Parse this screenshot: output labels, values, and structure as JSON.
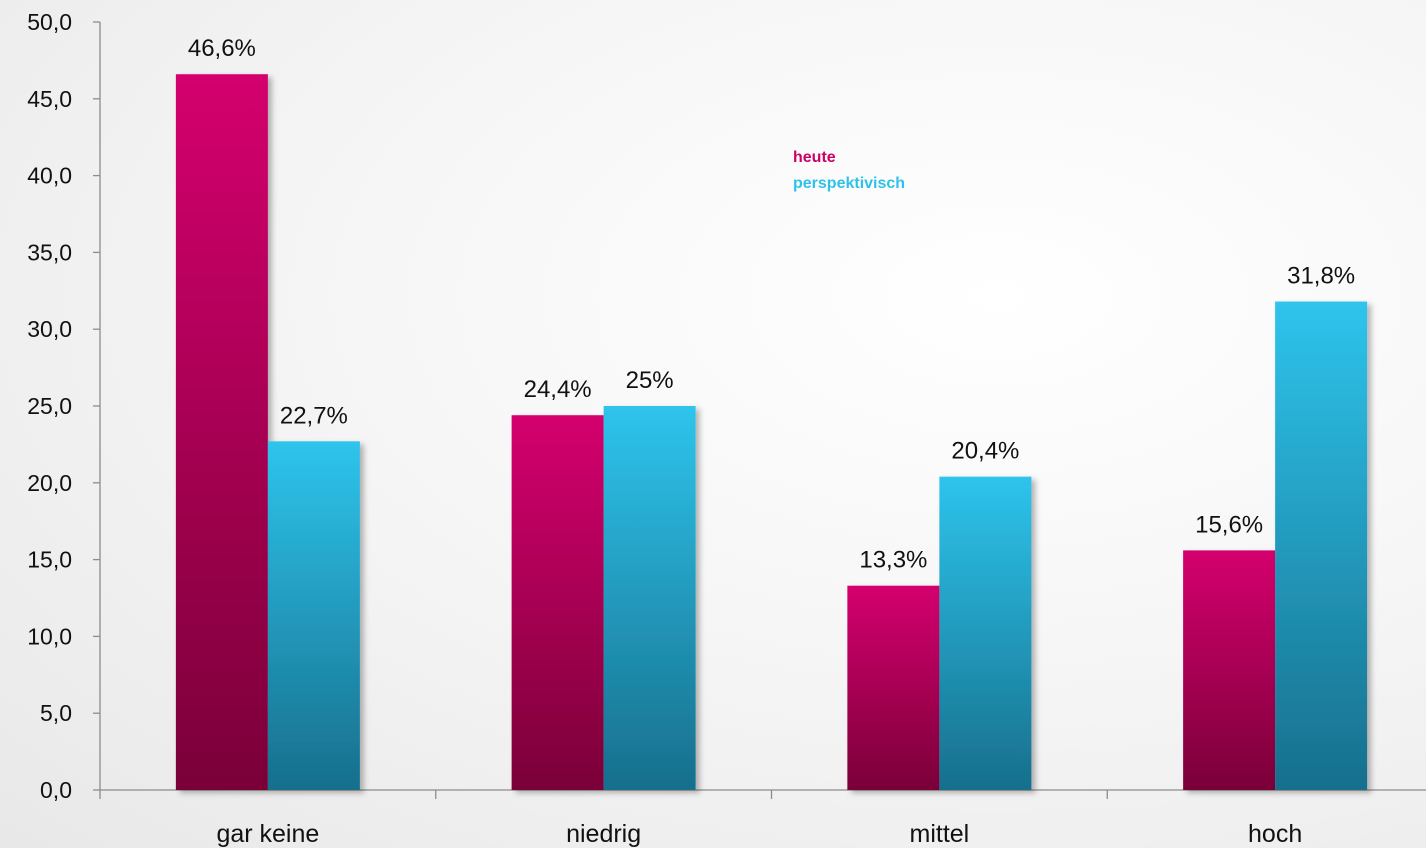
{
  "chart_data": {
    "type": "bar",
    "categories": [
      "gar keine",
      "niedrig",
      "mittel",
      "hoch"
    ],
    "series": [
      {
        "name": "heute",
        "values": [
          46.6,
          24.4,
          13.3,
          15.6
        ],
        "labels": [
          "46,6%",
          "24,4%",
          "13,3%",
          "15,6%"
        ],
        "color": "#cc0066"
      },
      {
        "name": "perspektivisch",
        "values": [
          22.7,
          25.0,
          20.4,
          31.8
        ],
        "labels": [
          "22,7%",
          "25%",
          "20,4%",
          "31,8%"
        ],
        "color": "#2ec2ea"
      }
    ],
    "ylim": [
      0,
      50
    ],
    "yticks": [
      0,
      5,
      10,
      15,
      20,
      25,
      30,
      35,
      40,
      45,
      50
    ],
    "ytick_labels": [
      "0,0",
      "5,0",
      "10,0",
      "15,0",
      "20,0",
      "25,0",
      "30,0",
      "35,0",
      "40,0",
      "45,0",
      "50,0"
    ],
    "title": "",
    "xlabel": "",
    "ylabel": "",
    "grid": false,
    "legend_position": "top-center"
  }
}
